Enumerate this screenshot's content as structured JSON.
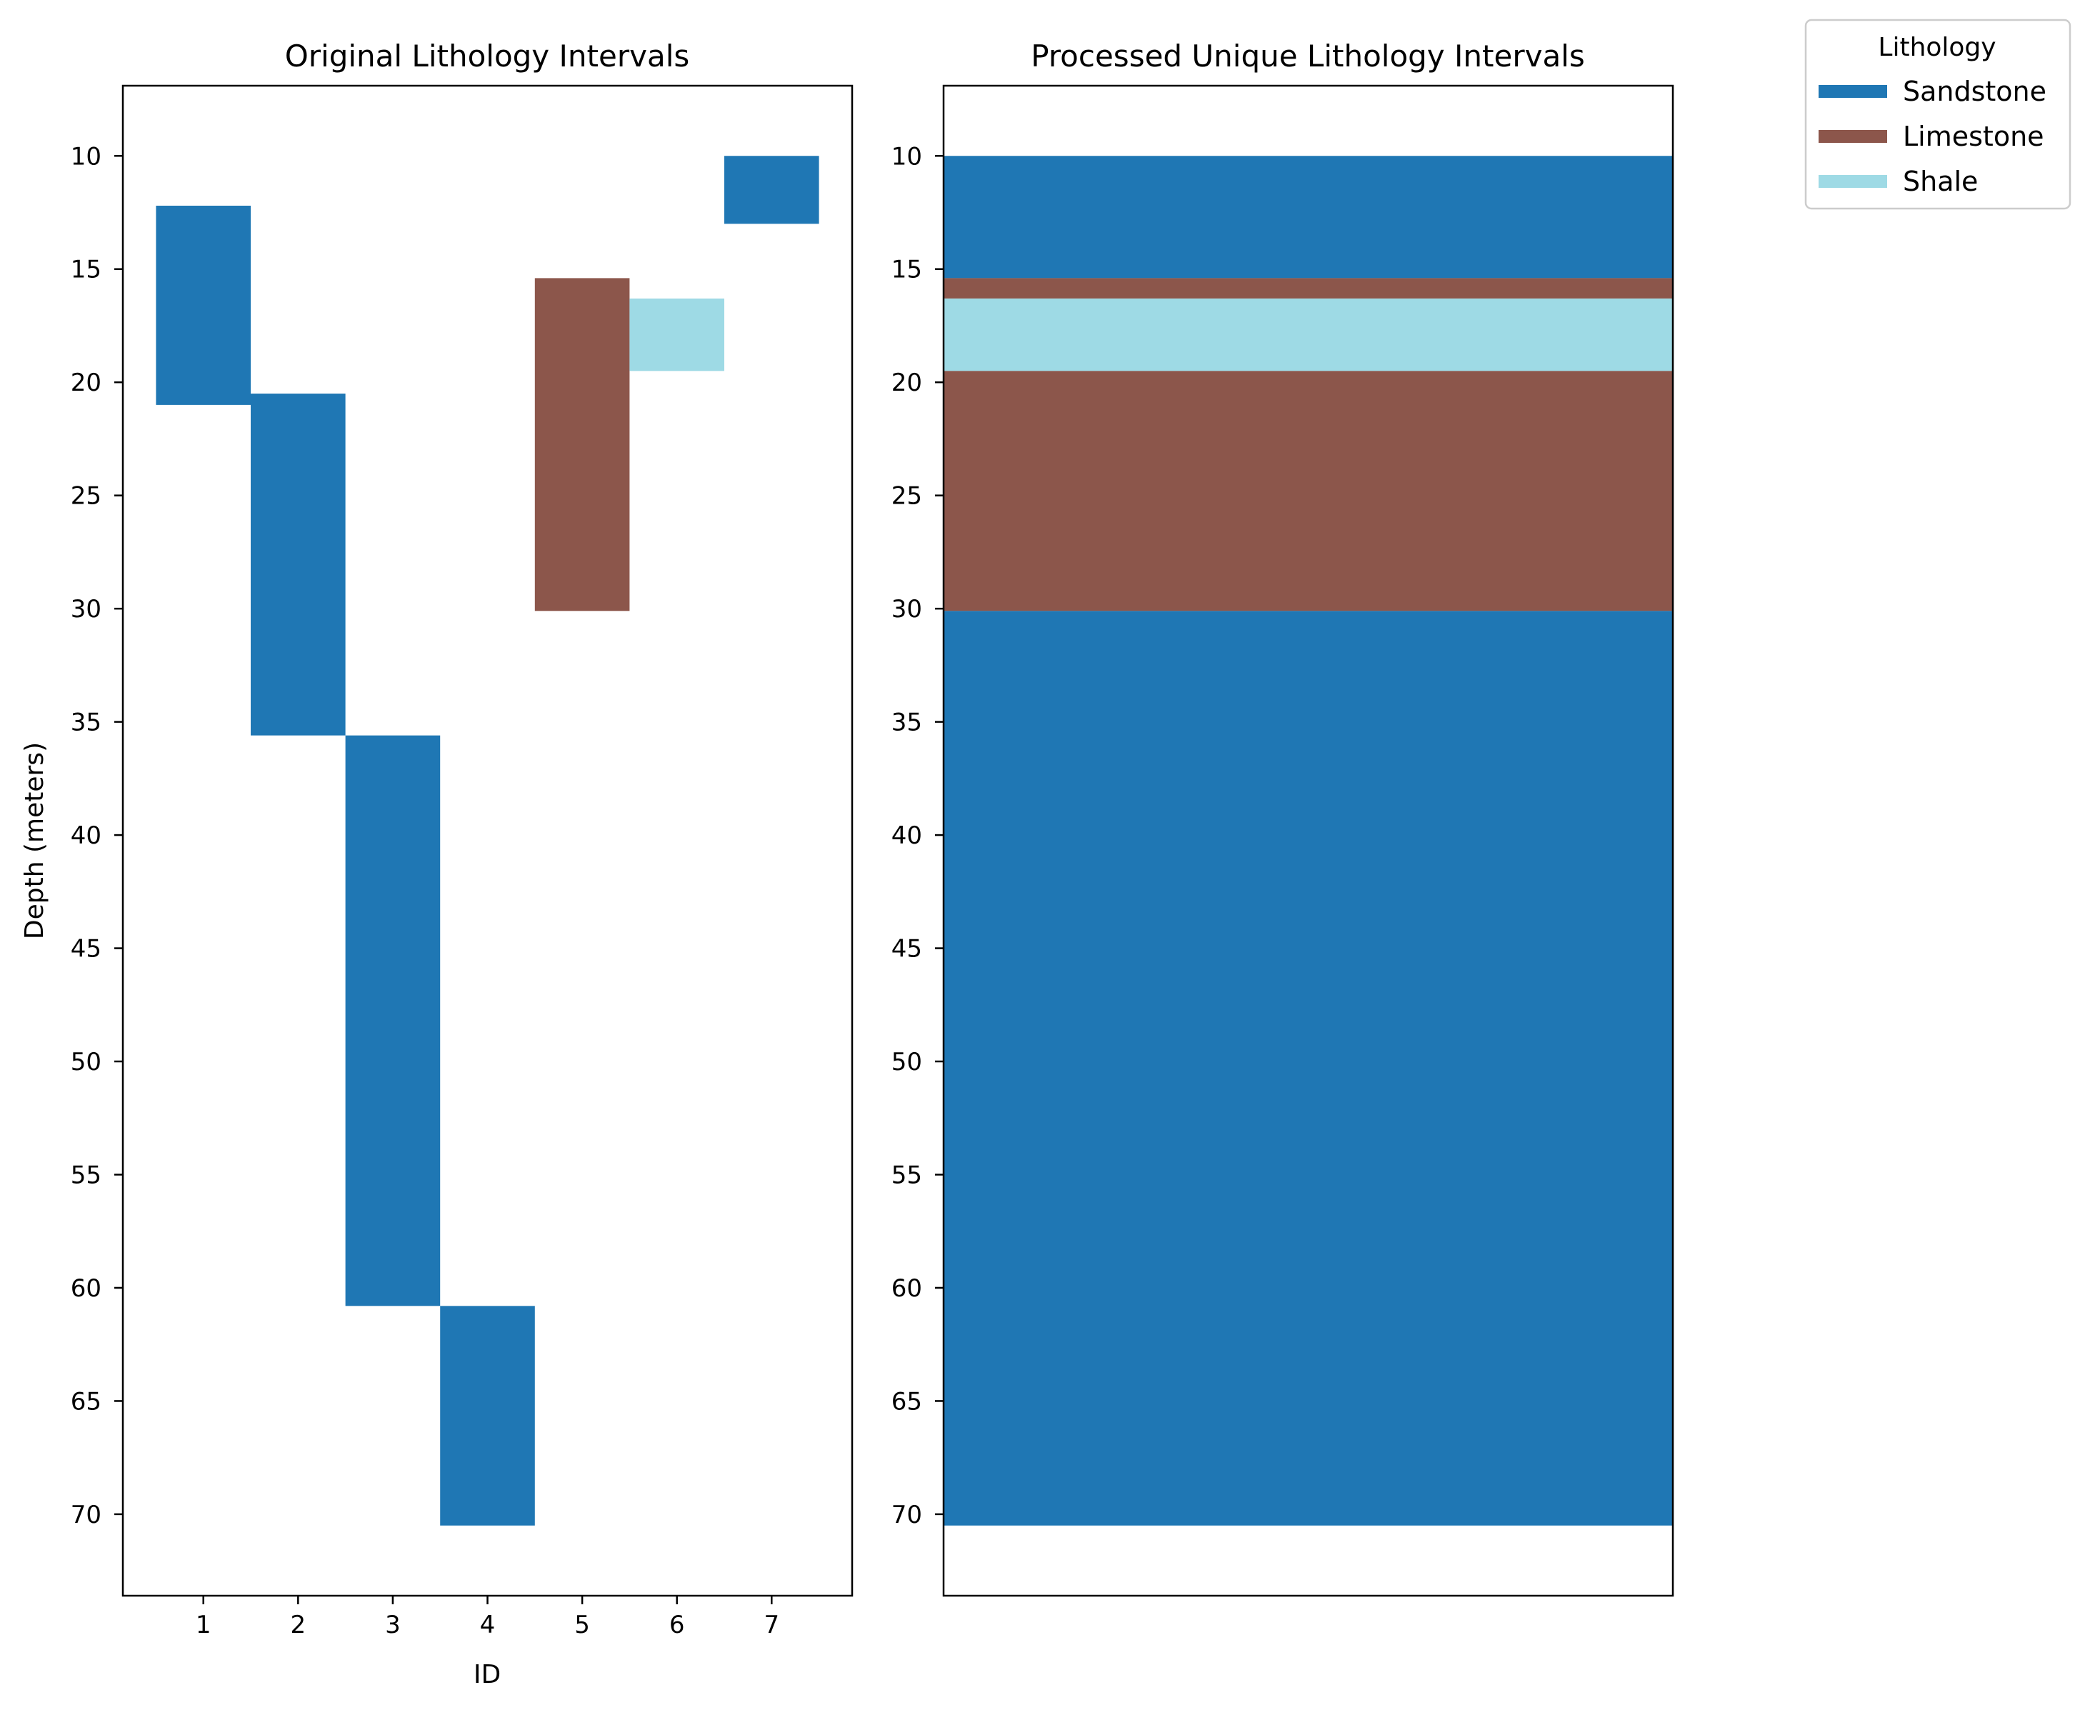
{
  "chart_data": [
    {
      "type": "bar",
      "orientation": "vertical-interval",
      "title": "Original Lithology Intervals",
      "xlabel": "ID",
      "ylabel": "Depth (meters)",
      "x_ticks": [
        1,
        2,
        3,
        4,
        5,
        6,
        7
      ],
      "y_ticks": [
        10,
        15,
        20,
        25,
        30,
        35,
        40,
        45,
        50,
        55,
        60,
        65,
        70
      ],
      "xlim": [
        0.15,
        7.85
      ],
      "ylim": [
        73.6,
        6.9
      ],
      "y_inverted": true,
      "grid": false,
      "intervals": [
        {
          "id": 1,
          "top": 12.2,
          "bottom": 21.0,
          "lithology": "Sandstone"
        },
        {
          "id": 2,
          "top": 20.5,
          "bottom": 35.6,
          "lithology": "Sandstone"
        },
        {
          "id": 3,
          "top": 35.6,
          "bottom": 60.8,
          "lithology": "Sandstone"
        },
        {
          "id": 4,
          "top": 60.8,
          "bottom": 70.5,
          "lithology": "Sandstone"
        },
        {
          "id": 5,
          "top": 15.4,
          "bottom": 30.1,
          "lithology": "Limestone"
        },
        {
          "id": 6,
          "top": 16.3,
          "bottom": 19.5,
          "lithology": "Shale"
        },
        {
          "id": 7,
          "top": 10.0,
          "bottom": 13.0,
          "lithology": "Sandstone"
        }
      ]
    },
    {
      "type": "bar",
      "orientation": "stacked-interval",
      "title": "Processed Unique Lithology Intervals",
      "xlabel": "",
      "ylabel": "",
      "y_ticks": [
        10,
        15,
        20,
        25,
        30,
        35,
        40,
        45,
        50,
        55,
        60,
        65,
        70
      ],
      "ylim": [
        73.6,
        6.9
      ],
      "y_inverted": true,
      "grid": false,
      "intervals": [
        {
          "top": 10.0,
          "bottom": 15.4,
          "lithology": "Sandstone"
        },
        {
          "top": 15.4,
          "bottom": 16.3,
          "lithology": "Limestone"
        },
        {
          "top": 16.3,
          "bottom": 19.5,
          "lithology": "Shale"
        },
        {
          "top": 19.5,
          "bottom": 30.1,
          "lithology": "Limestone"
        },
        {
          "top": 30.1,
          "bottom": 70.5,
          "lithology": "Sandstone"
        }
      ]
    }
  ],
  "legend": {
    "title": "Lithology",
    "placement": "outside-top-right",
    "entries": [
      {
        "label": "Sandstone",
        "color": "#1f77b4"
      },
      {
        "label": "Limestone",
        "color": "#8c564b"
      },
      {
        "label": "Shale",
        "color": "#9edae5"
      }
    ]
  }
}
